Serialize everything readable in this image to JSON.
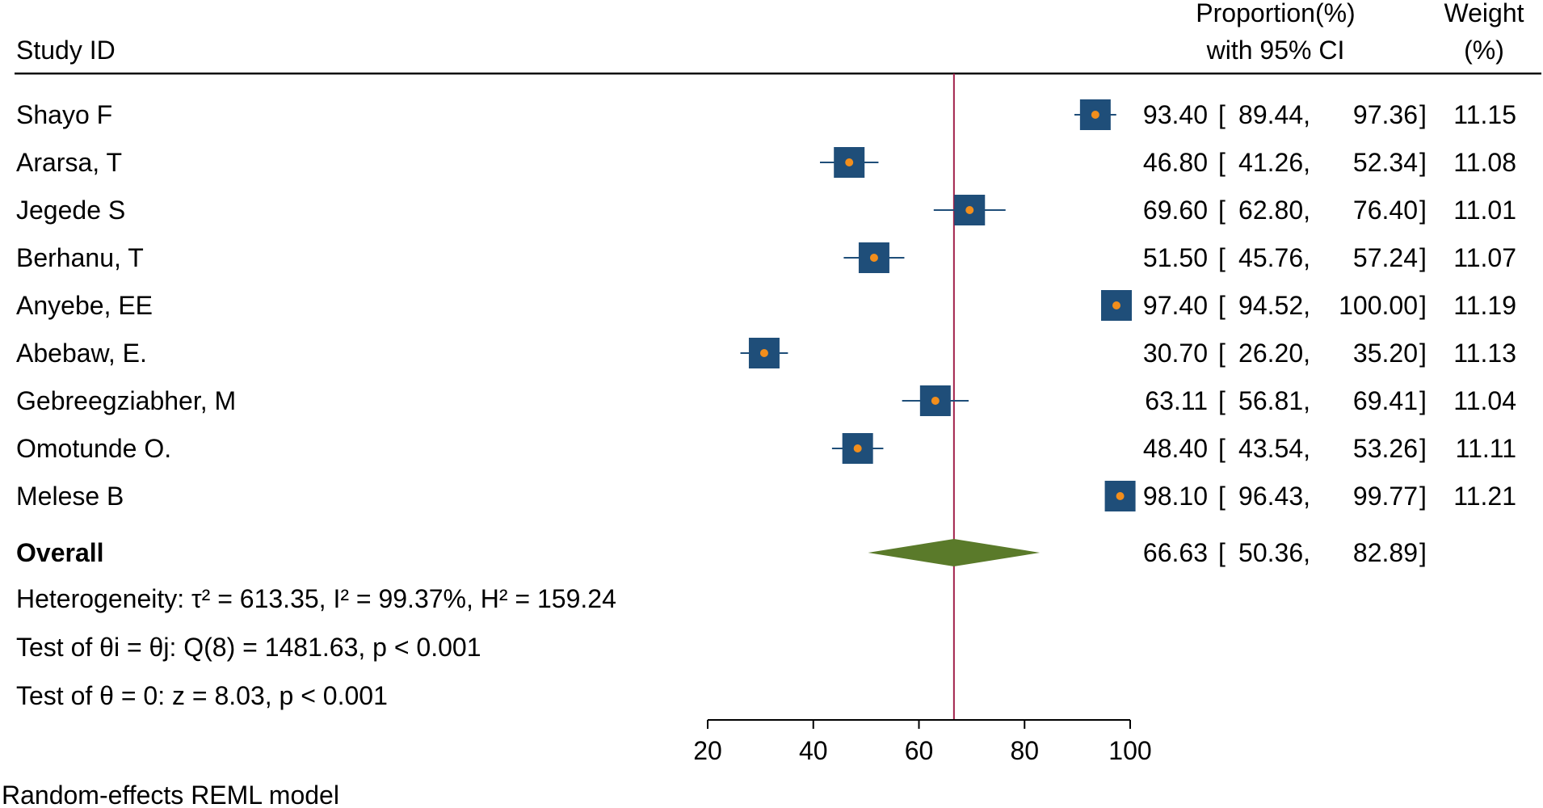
{
  "chart_data": {
    "type": "forest",
    "header": {
      "study_col": "Study ID",
      "effect_col_line1": "Proportion(%)",
      "effect_col_line2": "with 95% CI",
      "weight_col_line1": "Weight",
      "weight_col_line2": "(%)"
    },
    "studies": [
      {
        "name": "Shayo F",
        "est": 93.4,
        "lo": 89.44,
        "hi": 97.36,
        "weight": 11.15,
        "est_text": "93.40",
        "lo_text": "89.44",
        "hi_text": "97.36",
        "weight_text": "11.15"
      },
      {
        "name": "Ararsa, T",
        "est": 46.8,
        "lo": 41.26,
        "hi": 52.34,
        "weight": 11.08,
        "est_text": "46.80",
        "lo_text": "41.26",
        "hi_text": "52.34",
        "weight_text": "11.08"
      },
      {
        "name": "Jegede S",
        "est": 69.6,
        "lo": 62.8,
        "hi": 76.4,
        "weight": 11.01,
        "est_text": "69.60",
        "lo_text": "62.80",
        "hi_text": "76.40",
        "weight_text": "11.01"
      },
      {
        "name": "Berhanu, T",
        "est": 51.5,
        "lo": 45.76,
        "hi": 57.24,
        "weight": 11.07,
        "est_text": "51.50",
        "lo_text": "45.76",
        "hi_text": "57.24",
        "weight_text": "11.07"
      },
      {
        "name": "Anyebe, EE",
        "est": 97.4,
        "lo": 94.52,
        "hi": 100.0,
        "weight": 11.19,
        "est_text": "97.40",
        "lo_text": "94.52",
        "hi_text": "100.00",
        "weight_text": "11.19"
      },
      {
        "name": "Abebaw, E.",
        "est": 30.7,
        "lo": 26.2,
        "hi": 35.2,
        "weight": 11.13,
        "est_text": "30.70",
        "lo_text": "26.20",
        "hi_text": "35.20",
        "weight_text": "11.13"
      },
      {
        "name": "Gebreegziabher, M",
        "est": 63.11,
        "lo": 56.81,
        "hi": 69.41,
        "weight": 11.04,
        "est_text": "63.11",
        "lo_text": "56.81",
        "hi_text": "69.41",
        "weight_text": "11.04"
      },
      {
        "name": "Omotunde O.",
        "est": 48.4,
        "lo": 43.54,
        "hi": 53.26,
        "weight": 11.11,
        "est_text": "48.40",
        "lo_text": "43.54",
        "hi_text": "53.26",
        "weight_text": "11.11"
      },
      {
        "name": "Melese B",
        "est": 98.1,
        "lo": 96.43,
        "hi": 99.77,
        "weight": 11.21,
        "est_text": "98.10",
        "lo_text": "96.43",
        "hi_text": "99.77",
        "weight_text": "11.21"
      }
    ],
    "overall": {
      "label": "Overall",
      "est": 66.63,
      "lo": 50.36,
      "hi": 82.89,
      "est_text": "66.63",
      "lo_text": "50.36",
      "hi_text": "82.89"
    },
    "stats": {
      "heterogeneity": "Heterogeneity: τ² = 613.35, I² = 99.37%, H² = 159.24",
      "test_q": "Test of θi = θj: Q(8) = 1481.63, p < 0.001",
      "test_z": "Test of θ = 0: z = 8.03, p < 0.001"
    },
    "x_ticks": [
      20,
      40,
      60,
      80,
      100
    ],
    "xlim": [
      20,
      100
    ],
    "footnote": "Random-effects REML model",
    "colors": {
      "box": "#1f4e79",
      "point": "#f28e1c",
      "ci_line": "#1f4e79",
      "diamond": "#5a7a2a",
      "ref_line": "#a0204a",
      "rule": "#000000"
    }
  }
}
